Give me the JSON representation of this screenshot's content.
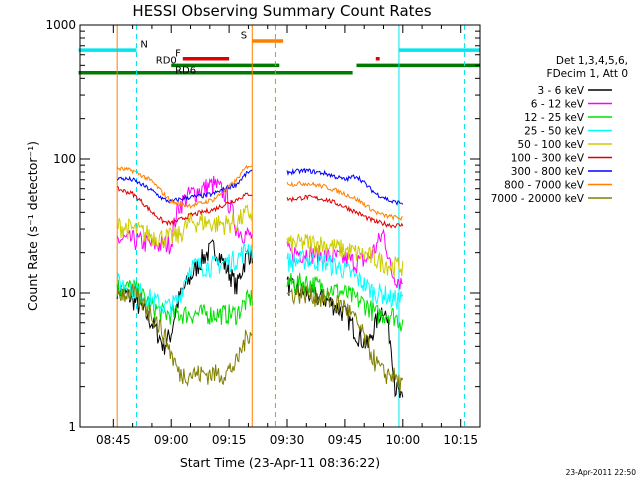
{
  "chart_data": {
    "type": "line",
    "title": "HESSI Observing Summary Count Rates",
    "xlabel": "Start Time (23-Apr-11 08:36:22)",
    "ylabel": "Count Rate (s⁻¹ detector⁻¹)",
    "x_ticks": [
      "08:45",
      "09:00",
      "09:15",
      "09:30",
      "09:45",
      "10:00",
      "10:15"
    ],
    "y_ticks": [
      "1",
      "10",
      "100",
      "1000"
    ],
    "y_scale": "log",
    "ylim": [
      1,
      1000
    ],
    "xlim": [
      "08:36:22",
      "10:20:00"
    ],
    "grid": false,
    "legend_position": "right",
    "legend_header": [
      "Det 1,3,4,5,6,",
      "FDecim 1, Att 0"
    ],
    "footer": "23-Apr-2011 22:50",
    "series": [
      {
        "name": "3 - 6 keV",
        "color": "#000000",
        "points": [
          [
            "08:46",
            11
          ],
          [
            "08:50",
            9
          ],
          [
            "08:55",
            6
          ],
          [
            "08:58",
            4
          ],
          [
            "09:00",
            5
          ],
          [
            "09:02",
            9
          ],
          [
            "09:05",
            13
          ],
          [
            "09:08",
            18
          ],
          [
            "09:11",
            22
          ],
          [
            "09:14",
            16
          ],
          [
            "09:17",
            11
          ],
          [
            "09:20",
            20
          ],
          [
            "09:31",
            11
          ],
          [
            "09:35",
            10
          ],
          [
            "09:40",
            9
          ],
          [
            "09:45",
            7
          ],
          [
            "09:48",
            5
          ],
          [
            "09:51",
            4
          ],
          [
            "09:53",
            6
          ],
          [
            "09:55",
            8
          ],
          [
            "09:57",
            4
          ],
          [
            "09:58",
            2
          ],
          [
            "10:00",
            1.5
          ]
        ]
      },
      {
        "name": "6 - 12 keV",
        "color": "#ff00ff",
        "points": [
          [
            "08:46",
            25
          ],
          [
            "08:50",
            25
          ],
          [
            "08:55",
            23
          ],
          [
            "08:58",
            23
          ],
          [
            "09:00",
            24
          ],
          [
            "09:02",
            45
          ],
          [
            "09:05",
            55
          ],
          [
            "09:08",
            60
          ],
          [
            "09:11",
            65
          ],
          [
            "09:14",
            55
          ],
          [
            "09:17",
            30
          ],
          [
            "09:20",
            27
          ],
          [
            "09:31",
            20
          ],
          [
            "09:35",
            20
          ],
          [
            "09:40",
            19
          ],
          [
            "09:45",
            18
          ],
          [
            "09:48",
            17
          ],
          [
            "09:51",
            18
          ],
          [
            "09:53",
            22
          ],
          [
            "09:55",
            28
          ],
          [
            "09:57",
            14
          ],
          [
            "10:00",
            12
          ]
        ]
      },
      {
        "name": "12 - 25 keV",
        "color": "#00e000",
        "points": [
          [
            "08:46",
            11
          ],
          [
            "08:50",
            11
          ],
          [
            "08:55",
            8
          ],
          [
            "08:58",
            7
          ],
          [
            "09:00",
            7
          ],
          [
            "09:02",
            7
          ],
          [
            "09:05",
            7
          ],
          [
            "09:08",
            7
          ],
          [
            "09:11",
            7
          ],
          [
            "09:14",
            7
          ],
          [
            "09:17",
            7
          ],
          [
            "09:20",
            9
          ],
          [
            "09:31",
            12
          ],
          [
            "09:35",
            12
          ],
          [
            "09:40",
            11
          ],
          [
            "09:45",
            10
          ],
          [
            "09:48",
            9
          ],
          [
            "09:51",
            8
          ],
          [
            "09:53",
            7
          ],
          [
            "09:55",
            7
          ],
          [
            "09:57",
            7
          ],
          [
            "10:00",
            6
          ]
        ]
      },
      {
        "name": "25 - 50 keV",
        "color": "#00ffff",
        "points": [
          [
            "08:46",
            12
          ],
          [
            "08:50",
            11
          ],
          [
            "08:55",
            9
          ],
          [
            "08:58",
            8
          ],
          [
            "09:00",
            8
          ],
          [
            "09:02",
            9
          ],
          [
            "09:05",
            16
          ],
          [
            "09:08",
            16
          ],
          [
            "09:11",
            16
          ],
          [
            "09:14",
            17
          ],
          [
            "09:17",
            18
          ],
          [
            "09:20",
            22
          ],
          [
            "09:31",
            17
          ],
          [
            "09:35",
            18
          ],
          [
            "09:40",
            17
          ],
          [
            "09:45",
            15
          ],
          [
            "09:48",
            13
          ],
          [
            "09:51",
            11
          ],
          [
            "09:53",
            10
          ],
          [
            "09:55",
            10
          ],
          [
            "09:57",
            9
          ],
          [
            "10:00",
            9
          ]
        ]
      },
      {
        "name": "50 - 100 keV",
        "color": "#cccc00",
        "points": [
          [
            "08:46",
            32
          ],
          [
            "08:50",
            30
          ],
          [
            "08:55",
            27
          ],
          [
            "08:58",
            26
          ],
          [
            "09:00",
            26
          ],
          [
            "09:02",
            27
          ],
          [
            "09:05",
            34
          ],
          [
            "09:08",
            34
          ],
          [
            "09:11",
            33
          ],
          [
            "09:14",
            33
          ],
          [
            "09:17",
            34
          ],
          [
            "09:20",
            40
          ],
          [
            "09:31",
            23
          ],
          [
            "09:35",
            24
          ],
          [
            "09:40",
            23
          ],
          [
            "09:45",
            21
          ],
          [
            "09:48",
            20
          ],
          [
            "09:51",
            19
          ],
          [
            "09:53",
            18
          ],
          [
            "09:55",
            17
          ],
          [
            "09:57",
            16
          ],
          [
            "10:00",
            16
          ]
        ]
      },
      {
        "name": "100 - 300 keV",
        "color": "#e00000",
        "points": [
          [
            "08:46",
            60
          ],
          [
            "08:50",
            55
          ],
          [
            "08:55",
            40
          ],
          [
            "08:58",
            34
          ],
          [
            "09:00",
            33
          ],
          [
            "09:02",
            35
          ],
          [
            "09:05",
            38
          ],
          [
            "09:08",
            40
          ],
          [
            "09:11",
            42
          ],
          [
            "09:14",
            46
          ],
          [
            "09:17",
            50
          ],
          [
            "09:20",
            55
          ],
          [
            "09:31",
            50
          ],
          [
            "09:35",
            52
          ],
          [
            "09:40",
            50
          ],
          [
            "09:45",
            44
          ],
          [
            "09:48",
            40
          ],
          [
            "09:51",
            36
          ],
          [
            "09:53",
            34
          ],
          [
            "09:55",
            33
          ],
          [
            "09:57",
            32
          ],
          [
            "10:00",
            32
          ]
        ]
      },
      {
        "name": "300 - 800 keV",
        "color": "#0000ff",
        "points": [
          [
            "08:46",
            72
          ],
          [
            "08:50",
            70
          ],
          [
            "08:55",
            58
          ],
          [
            "08:58",
            50
          ],
          [
            "09:00",
            48
          ],
          [
            "09:02",
            50
          ],
          [
            "09:05",
            52
          ],
          [
            "09:08",
            53
          ],
          [
            "09:11",
            55
          ],
          [
            "09:14",
            60
          ],
          [
            "09:17",
            65
          ],
          [
            "09:20",
            80
          ],
          [
            "09:31",
            80
          ],
          [
            "09:35",
            82
          ],
          [
            "09:40",
            78
          ],
          [
            "09:45",
            70
          ],
          [
            "09:48",
            75
          ],
          [
            "09:51",
            62
          ],
          [
            "09:53",
            55
          ],
          [
            "09:55",
            52
          ],
          [
            "09:57",
            48
          ],
          [
            "10:00",
            47
          ]
        ]
      },
      {
        "name": "800 - 7000 keV",
        "color": "#ff8000",
        "points": [
          [
            "08:46",
            85
          ],
          [
            "08:50",
            82
          ],
          [
            "08:55",
            68
          ],
          [
            "08:58",
            55
          ],
          [
            "09:00",
            48
          ],
          [
            "09:02",
            46
          ],
          [
            "09:05",
            45
          ],
          [
            "09:08",
            47
          ],
          [
            "09:11",
            50
          ],
          [
            "09:14",
            58
          ],
          [
            "09:17",
            70
          ],
          [
            "09:20",
            90
          ],
          [
            "09:31",
            65
          ],
          [
            "09:35",
            66
          ],
          [
            "09:40",
            62
          ],
          [
            "09:45",
            55
          ],
          [
            "09:48",
            50
          ],
          [
            "09:51",
            44
          ],
          [
            "09:53",
            40
          ],
          [
            "09:55",
            38
          ],
          [
            "09:57",
            37
          ],
          [
            "10:00",
            36
          ]
        ]
      },
      {
        "name": "7000 - 20000 keV",
        "color": "#808000",
        "points": [
          [
            "08:46",
            10
          ],
          [
            "08:50",
            10
          ],
          [
            "08:55",
            7
          ],
          [
            "08:58",
            5
          ],
          [
            "09:00",
            3.5
          ],
          [
            "09:02",
            2.5
          ],
          [
            "09:05",
            2.5
          ],
          [
            "09:08",
            2.5
          ],
          [
            "09:11",
            2.5
          ],
          [
            "09:14",
            2.5
          ],
          [
            "09:17",
            3
          ],
          [
            "09:20",
            5
          ],
          [
            "09:31",
            10
          ],
          [
            "09:35",
            10
          ],
          [
            "09:40",
            9
          ],
          [
            "09:45",
            8
          ],
          [
            "09:48",
            6
          ],
          [
            "09:51",
            4
          ],
          [
            "09:53",
            3
          ],
          [
            "09:55",
            2.5
          ],
          [
            "09:57",
            2.5
          ],
          [
            "10:00",
            2
          ]
        ]
      }
    ],
    "flag_labels": [
      {
        "label": "N",
        "color": "#00e5ee"
      },
      {
        "label": "F",
        "color": "#e00000"
      },
      {
        "label": "RD0",
        "color": "#007a00"
      },
      {
        "label": "RD6",
        "color": "#007a00"
      },
      {
        "label": "S",
        "color": "#ff8000"
      }
    ],
    "flag_bars": [
      {
        "color": "#00e5ee",
        "level": 650,
        "start": "08:36",
        "end": "08:51"
      },
      {
        "color": "#00e5ee",
        "level": 650,
        "start": "09:59",
        "end": "10:20"
      },
      {
        "color": "#e00000",
        "level": 560,
        "start": "09:03",
        "end": "09:15"
      },
      {
        "color": "#e00000",
        "level": 560,
        "start": "09:53",
        "end": "09:54"
      },
      {
        "color": "#007a00",
        "level": 500,
        "start": "09:00",
        "end": "09:28"
      },
      {
        "color": "#007a00",
        "level": 500,
        "start": "09:48",
        "end": "10:20"
      },
      {
        "color": "#007a00",
        "level": 440,
        "start": "08:36",
        "end": "09:30"
      },
      {
        "color": "#007a00",
        "level": 440,
        "start": "09:30",
        "end": "09:47"
      },
      {
        "color": "#ff8000",
        "level": 760,
        "start": "09:21",
        "end": "09:29"
      }
    ],
    "vertical_markers": [
      {
        "time": "08:46",
        "color": "#ff8000",
        "style": "solid"
      },
      {
        "time": "08:51",
        "color": "#00e5ee",
        "style": "dashed"
      },
      {
        "time": "09:21",
        "color": "#ff8000",
        "style": "solid"
      },
      {
        "time": "09:27",
        "color": "#ff8000",
        "style": "dashed"
      },
      {
        "time": "09:59",
        "color": "#00e5ee",
        "style": "solid"
      },
      {
        "time": "10:16",
        "color": "#00e5ee",
        "style": "dashed"
      }
    ]
  }
}
